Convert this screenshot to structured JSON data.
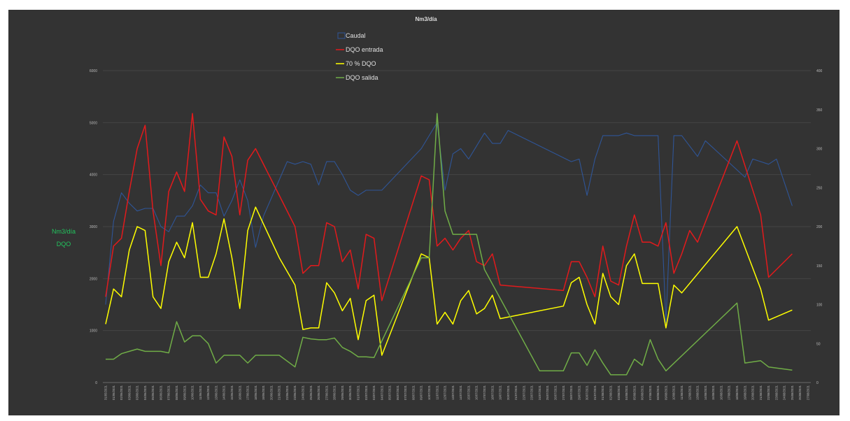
{
  "chart_data": {
    "type": "line",
    "title": "Nm3/día",
    "ylabel": [
      "Nm3/día",
      "DQO"
    ],
    "ylim_left": [
      0,
      6000
    ],
    "yticks_left": [
      "0",
      "1000",
      "2000",
      "3000",
      "4000",
      "5000",
      "6000"
    ],
    "ylim_right": [
      0,
      400
    ],
    "yticks_right": [
      "0",
      "50",
      "100",
      "150",
      "200",
      "250",
      "300",
      "350",
      "400"
    ],
    "grid": true,
    "legend_position": "top-center",
    "x": [
      "31/05/2021",
      "01/06/2021",
      "02/06/2021",
      "03/06/2021",
      "03/06/2021",
      "04/06/2021",
      "05/06/2021",
      "06/06/2021",
      "07/06/2021",
      "08/06/2021",
      "09/06/2021",
      "10/06/2021",
      "11/06/2021",
      "12/06/2021",
      "13/06/2021",
      "14/06/2021",
      "15/06/2021",
      "16/06/2021",
      "17/06/2021",
      "18/06/2021",
      "19/06/2021",
      "20/06/2021",
      "21/06/2021",
      "22/06/2021",
      "23/06/2021",
      "24/06/2021",
      "25/06/2021",
      "26/06/2021",
      "27/06/2021",
      "28/06/2021",
      "29/06/2021",
      "30/06/2021",
      "01/07/2021",
      "02/07/2021",
      "03/07/2021",
      "04/07/2021",
      "05/07/2021",
      "06/07/2021",
      "07/07/2021",
      "08/07/2021",
      "09/07/2021",
      "10/07/2021",
      "11/07/2021",
      "12/07/2021",
      "13/07/2021",
      "14/07/2021",
      "15/07/2021",
      "16/07/2021",
      "17/07/2021",
      "18/07/2021",
      "19/07/2021",
      "20/07/2021",
      "21/07/2021",
      "22/07/2021",
      "23/07/2021",
      "24/07/2021",
      "25/07/2021",
      "26/07/2021",
      "27/07/2021",
      "28/07/2021",
      "29/07/2021",
      "30/07/2021",
      "31/07/2021",
      "01/08/2021",
      "02/08/2021",
      "03/08/2021",
      "04/08/2021",
      "05/08/2021",
      "06/08/2021",
      "07/08/2021",
      "08/08/2021",
      "09/08/2021",
      "10/08/2021",
      "11/08/2021",
      "12/08/2021",
      "13/08/2021",
      "14/08/2021",
      "15/08/2021",
      "16/08/2021",
      "17/08/2021",
      "18/08/2021",
      "19/08/2021",
      "20/08/2021",
      "21/08/2021",
      "22/08/2021",
      "23/08/2021",
      "24/08/2021",
      "25/08/2021",
      "26/08/2021",
      "27/08/2021"
    ],
    "series": [
      {
        "name": "Caudal",
        "axis": "left",
        "color": "#2f5597",
        "points": [
          [
            0,
            1500
          ],
          [
            1,
            3100
          ],
          [
            2,
            3650
          ],
          [
            3,
            3450
          ],
          [
            4,
            3300
          ],
          [
            5,
            3350
          ],
          [
            6,
            3350
          ],
          [
            7,
            3000
          ],
          [
            8,
            2900
          ],
          [
            9,
            3200
          ],
          [
            10,
            3200
          ],
          [
            11,
            3400
          ],
          [
            12,
            3800
          ],
          [
            13,
            3650
          ],
          [
            14,
            3650
          ],
          [
            15,
            3200
          ],
          [
            16,
            3500
          ],
          [
            17,
            3900
          ],
          [
            18,
            3500
          ],
          [
            19,
            2600
          ],
          [
            20,
            3200
          ],
          [
            23,
            4250
          ],
          [
            24,
            4200
          ],
          [
            25,
            4250
          ],
          [
            26,
            4200
          ],
          [
            27,
            3800
          ],
          [
            28,
            4250
          ],
          [
            29,
            4250
          ],
          [
            30,
            4000
          ],
          [
            31,
            3700
          ],
          [
            32,
            3600
          ],
          [
            33,
            3700
          ],
          [
            35,
            3700
          ],
          [
            40,
            4500
          ],
          [
            41,
            4750
          ],
          [
            42,
            5000
          ],
          [
            43,
            3700
          ],
          [
            44,
            4400
          ],
          [
            45,
            4500
          ],
          [
            46,
            4300
          ],
          [
            47,
            4550
          ],
          [
            48,
            4800
          ],
          [
            49,
            4600
          ],
          [
            50,
            4600
          ],
          [
            51,
            4850
          ],
          [
            59,
            4250
          ],
          [
            60,
            4300
          ],
          [
            61,
            3600
          ],
          [
            62,
            4300
          ],
          [
            63,
            4750
          ],
          [
            65,
            4750
          ],
          [
            66,
            4800
          ],
          [
            67,
            4750
          ],
          [
            69,
            4750
          ],
          [
            70,
            4750
          ],
          [
            71,
            1150
          ],
          [
            72,
            4750
          ],
          [
            73,
            4750
          ],
          [
            75,
            4350
          ],
          [
            76,
            4650
          ],
          [
            81,
            3950
          ],
          [
            82,
            4300
          ],
          [
            84,
            4200
          ],
          [
            85,
            4300
          ],
          [
            87,
            3400
          ]
        ]
      },
      {
        "name": "DQO entrada",
        "axis": "right",
        "color": "#e31a1c",
        "points": [
          [
            0,
            110
          ],
          [
            1,
            175
          ],
          [
            2,
            185
          ],
          [
            3,
            245
          ],
          [
            4,
            300
          ],
          [
            5,
            330
          ],
          [
            6,
            220
          ],
          [
            7,
            150
          ],
          [
            8,
            245
          ],
          [
            9,
            270
          ],
          [
            10,
            245
          ],
          [
            11,
            345
          ],
          [
            12,
            235
          ],
          [
            13,
            220
          ],
          [
            14,
            215
          ],
          [
            15,
            315
          ],
          [
            16,
            290
          ],
          [
            17,
            215
          ],
          [
            18,
            285
          ],
          [
            19,
            300
          ],
          [
            22,
            240
          ],
          [
            24,
            200
          ],
          [
            25,
            140
          ],
          [
            26,
            150
          ],
          [
            27,
            150
          ],
          [
            28,
            205
          ],
          [
            29,
            200
          ],
          [
            30,
            155
          ],
          [
            31,
            170
          ],
          [
            32,
            120
          ],
          [
            33,
            190
          ],
          [
            34,
            185
          ],
          [
            35,
            105
          ],
          [
            40,
            265
          ],
          [
            41,
            260
          ],
          [
            42,
            175
          ],
          [
            43,
            185
          ],
          [
            44,
            170
          ],
          [
            45,
            185
          ],
          [
            46,
            195
          ],
          [
            47,
            155
          ],
          [
            48,
            150
          ],
          [
            49,
            165
          ],
          [
            50,
            125
          ],
          [
            58,
            118
          ],
          [
            59,
            155
          ],
          [
            60,
            155
          ],
          [
            61,
            135
          ],
          [
            62,
            110
          ],
          [
            63,
            175
          ],
          [
            64,
            130
          ],
          [
            65,
            125
          ],
          [
            66,
            175
          ],
          [
            67,
            215
          ],
          [
            68,
            180
          ],
          [
            69,
            180
          ],
          [
            70,
            175
          ],
          [
            71,
            205
          ],
          [
            72,
            140
          ],
          [
            73,
            165
          ],
          [
            74,
            195
          ],
          [
            75,
            180
          ],
          [
            80,
            310
          ],
          [
            83,
            215
          ],
          [
            84,
            135
          ],
          [
            87,
            165
          ]
        ]
      },
      {
        "name": "70 % DQO",
        "axis": "right",
        "color": "#ffff00",
        "points": [
          [
            0,
            75
          ],
          [
            1,
            120
          ],
          [
            2,
            110
          ],
          [
            3,
            170
          ],
          [
            4,
            200
          ],
          [
            5,
            195
          ],
          [
            6,
            110
          ],
          [
            7,
            95
          ],
          [
            8,
            155
          ],
          [
            9,
            180
          ],
          [
            10,
            160
          ],
          [
            11,
            205
          ],
          [
            12,
            135
          ],
          [
            13,
            135
          ],
          [
            14,
            165
          ],
          [
            15,
            210
          ],
          [
            16,
            160
          ],
          [
            17,
            95
          ],
          [
            18,
            195
          ],
          [
            19,
            225
          ],
          [
            22,
            160
          ],
          [
            24,
            125
          ],
          [
            25,
            68
          ],
          [
            26,
            70
          ],
          [
            27,
            70
          ],
          [
            28,
            128
          ],
          [
            29,
            115
          ],
          [
            30,
            92
          ],
          [
            31,
            108
          ],
          [
            32,
            55
          ],
          [
            33,
            105
          ],
          [
            34,
            112
          ],
          [
            35,
            35
          ],
          [
            40,
            165
          ],
          [
            41,
            160
          ],
          [
            42,
            75
          ],
          [
            43,
            90
          ],
          [
            44,
            75
          ],
          [
            45,
            105
          ],
          [
            46,
            118
          ],
          [
            47,
            88
          ],
          [
            48,
            95
          ],
          [
            49,
            112
          ],
          [
            50,
            82
          ],
          [
            58,
            98
          ],
          [
            59,
            128
          ],
          [
            60,
            135
          ],
          [
            61,
            100
          ],
          [
            62,
            75
          ],
          [
            63,
            140
          ],
          [
            64,
            110
          ],
          [
            65,
            100
          ],
          [
            66,
            150
          ],
          [
            67,
            165
          ],
          [
            68,
            127
          ],
          [
            69,
            127
          ],
          [
            70,
            127
          ],
          [
            71,
            70
          ],
          [
            72,
            125
          ],
          [
            73,
            115
          ],
          [
            80,
            200
          ],
          [
            83,
            120
          ],
          [
            84,
            80
          ],
          [
            87,
            93
          ]
        ]
      },
      {
        "name": "DQO salida",
        "axis": "right",
        "color": "#70ad47",
        "points": [
          [
            0,
            30
          ],
          [
            1,
            30
          ],
          [
            2,
            37
          ],
          [
            3,
            40
          ],
          [
            4,
            43
          ],
          [
            5,
            40
          ],
          [
            6,
            40
          ],
          [
            7,
            40
          ],
          [
            8,
            38
          ],
          [
            9,
            78
          ],
          [
            10,
            52
          ],
          [
            11,
            60
          ],
          [
            12,
            60
          ],
          [
            13,
            50
          ],
          [
            14,
            25
          ],
          [
            15,
            35
          ],
          [
            16,
            35
          ],
          [
            17,
            35
          ],
          [
            18,
            25
          ],
          [
            19,
            35
          ],
          [
            22,
            35
          ],
          [
            24,
            20
          ],
          [
            25,
            58
          ],
          [
            26,
            56
          ],
          [
            27,
            55
          ],
          [
            28,
            55
          ],
          [
            29,
            57
          ],
          [
            30,
            45
          ],
          [
            31,
            40
          ],
          [
            32,
            33
          ],
          [
            33,
            33
          ],
          [
            34,
            32
          ],
          [
            40,
            160
          ],
          [
            41,
            160
          ],
          [
            42,
            345
          ],
          [
            43,
            220
          ],
          [
            44,
            190
          ],
          [
            45,
            190
          ],
          [
            47,
            190
          ],
          [
            48,
            145
          ],
          [
            55,
            15
          ],
          [
            58,
            15
          ],
          [
            59,
            38
          ],
          [
            60,
            38
          ],
          [
            61,
            22
          ],
          [
            62,
            42
          ],
          [
            63,
            25
          ],
          [
            64,
            10
          ],
          [
            65,
            10
          ],
          [
            66,
            10
          ],
          [
            67,
            30
          ],
          [
            68,
            22
          ],
          [
            69,
            55
          ],
          [
            70,
            30
          ],
          [
            71,
            15
          ],
          [
            80,
            102
          ],
          [
            81,
            25
          ],
          [
            83,
            28
          ],
          [
            84,
            20
          ],
          [
            87,
            16
          ]
        ]
      }
    ]
  }
}
